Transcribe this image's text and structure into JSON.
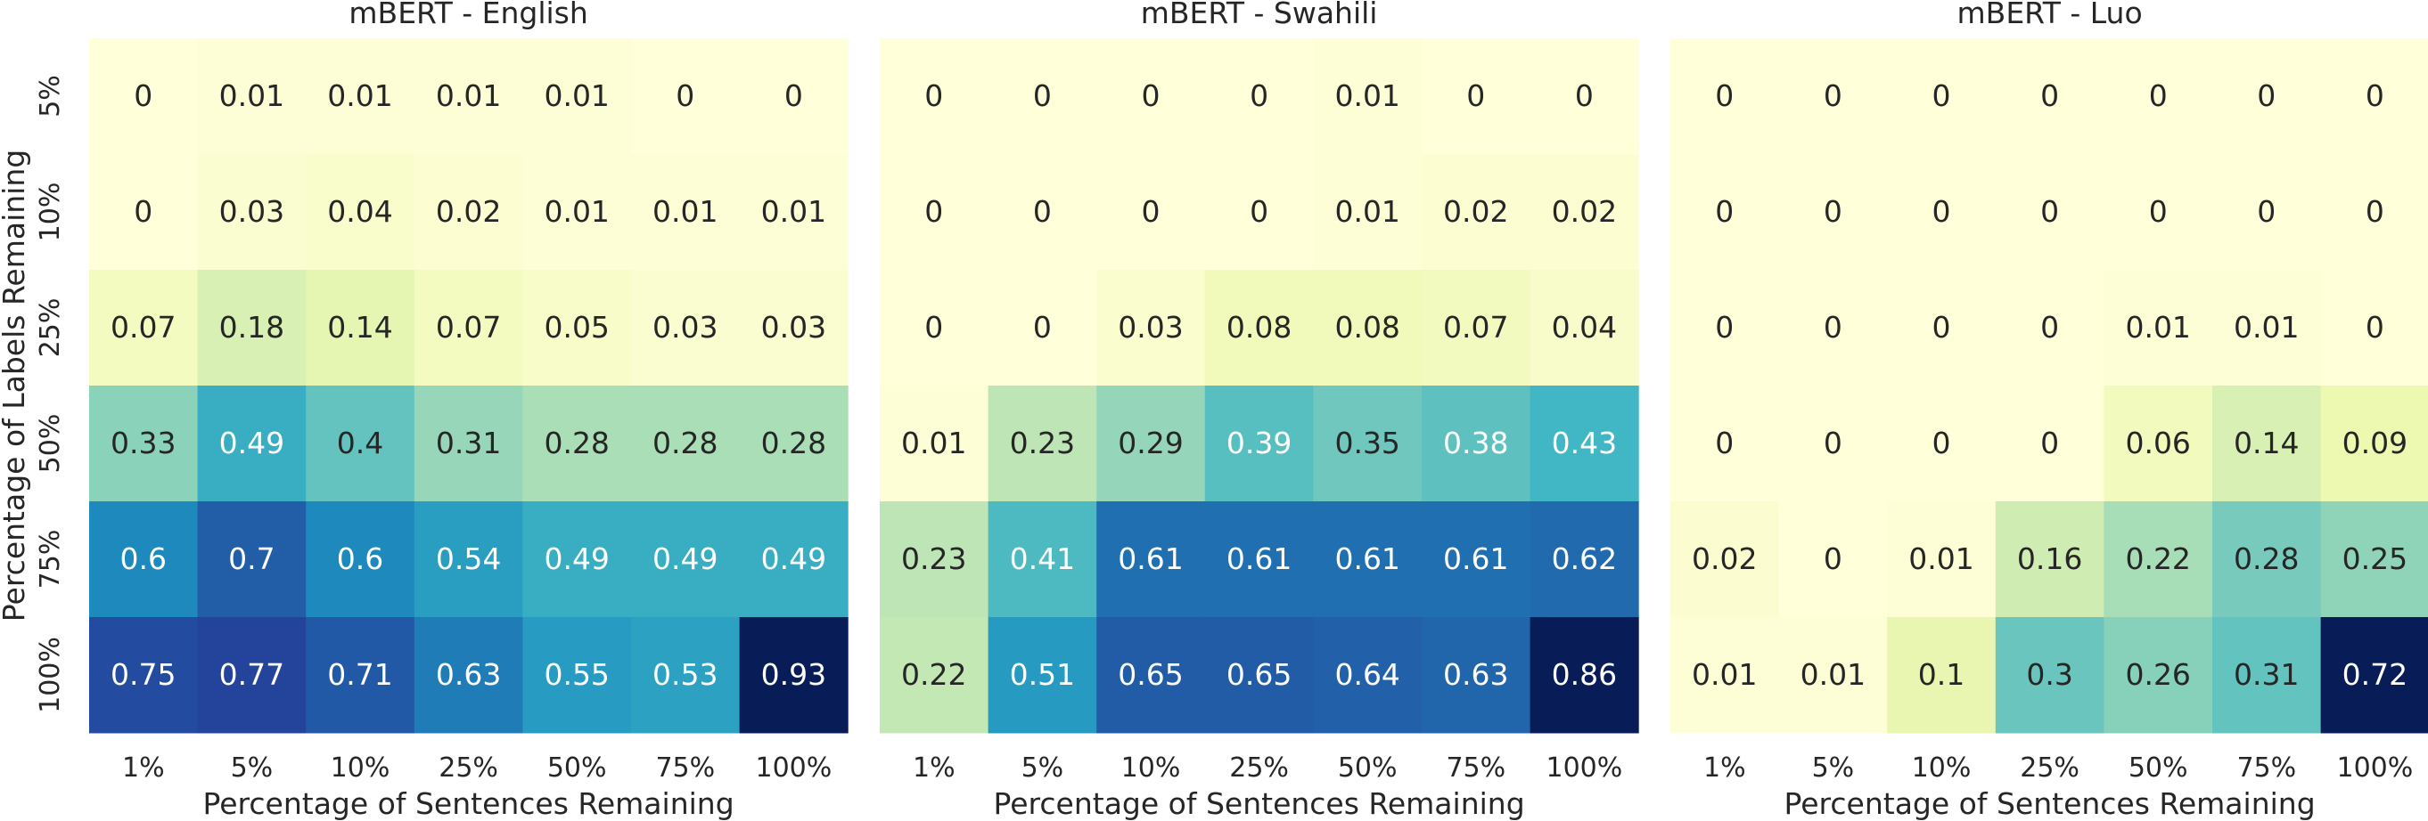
{
  "chart_data": [
    {
      "type": "heatmap",
      "title": "mBERT - English",
      "xlabel": "Percentage of Sentences Remaining",
      "ylabel": "Percentage of Labels Remaining",
      "x_categories": [
        "1%",
        "5%",
        "10%",
        "25%",
        "50%",
        "75%",
        "100%"
      ],
      "y_categories": [
        "5%",
        "10%",
        "25%",
        "50%",
        "75%",
        "100%"
      ],
      "values": [
        [
          0,
          0.01,
          0.01,
          0.01,
          0.01,
          0,
          0
        ],
        [
          0,
          0.03,
          0.04,
          0.02,
          0.01,
          0.01,
          0.01
        ],
        [
          0.07,
          0.18,
          0.14,
          0.07,
          0.05,
          0.03,
          0.03
        ],
        [
          0.33,
          0.49,
          0.4,
          0.31,
          0.28,
          0.28,
          0.28
        ],
        [
          0.6,
          0.7,
          0.6,
          0.54,
          0.49,
          0.49,
          0.49
        ],
        [
          0.75,
          0.77,
          0.71,
          0.63,
          0.55,
          0.53,
          0.93
        ]
      ],
      "colormap": "YlGnBu"
    },
    {
      "type": "heatmap",
      "title": "mBERT - Swahili",
      "xlabel": "Percentage of Sentences Remaining",
      "ylabel": "",
      "x_categories": [
        "1%",
        "5%",
        "10%",
        "25%",
        "50%",
        "75%",
        "100%"
      ],
      "y_categories": [],
      "values": [
        [
          0,
          0,
          0,
          0,
          0.01,
          0,
          0
        ],
        [
          0,
          0,
          0,
          0,
          0.01,
          0.02,
          0.02
        ],
        [
          0,
          0,
          0.03,
          0.08,
          0.08,
          0.07,
          0.04
        ],
        [
          0.01,
          0.23,
          0.29,
          0.39,
          0.35,
          0.38,
          0.43
        ],
        [
          0.23,
          0.41,
          0.61,
          0.61,
          0.61,
          0.61,
          0.62
        ],
        [
          0.22,
          0.51,
          0.65,
          0.65,
          0.64,
          0.63,
          0.86
        ]
      ],
      "colormap": "YlGnBu"
    },
    {
      "type": "heatmap",
      "title": "mBERT - Luo",
      "xlabel": "Percentage of Sentences Remaining",
      "ylabel": "",
      "x_categories": [
        "1%",
        "5%",
        "10%",
        "25%",
        "50%",
        "75%",
        "100%"
      ],
      "y_categories": [],
      "values": [
        [
          0,
          0,
          0,
          0,
          0,
          0,
          0
        ],
        [
          0,
          0,
          0,
          0,
          0,
          0,
          0
        ],
        [
          0,
          0,
          0,
          0,
          0.01,
          0.01,
          0
        ],
        [
          0,
          0,
          0,
          0,
          0.06,
          0.14,
          0.09
        ],
        [
          0.02,
          0,
          0.01,
          0.16,
          0.22,
          0.28,
          0.25
        ],
        [
          0.01,
          0.01,
          0.1,
          0.3,
          0.26,
          0.31,
          0.72
        ]
      ],
      "colormap": "YlGnBu"
    }
  ]
}
